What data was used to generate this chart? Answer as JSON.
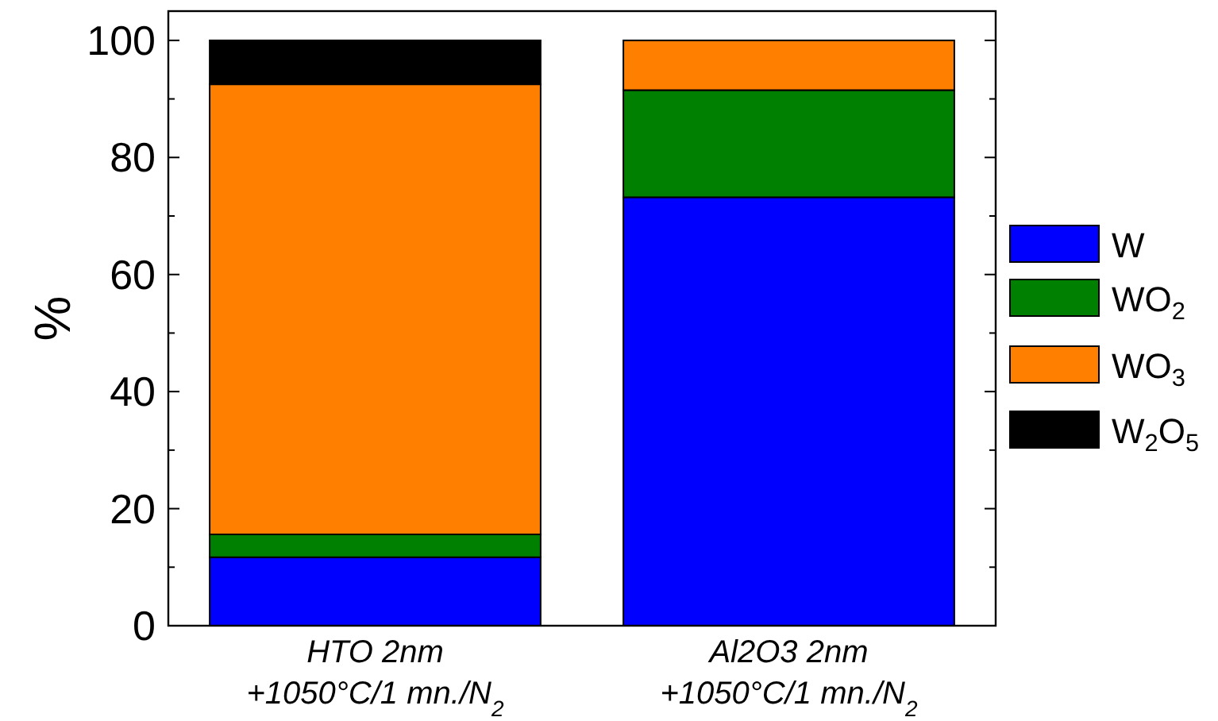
{
  "chart_data": {
    "type": "bar",
    "stacked": true,
    "ylabel": "%",
    "categories": [
      "HTO 2nm\n+1050°C/1 mn./N$_{2}$",
      "Al2O3 2nm\n+1050°C/1 mn./N$_{2}$"
    ],
    "series": [
      {
        "name": "W",
        "color": "#0000ff",
        "values": [
          11.7,
          73.2
        ]
      },
      {
        "name": "WO$_{2}$",
        "color": "#008000",
        "values": [
          3.9,
          18.3
        ]
      },
      {
        "name": "WO$_{3}$",
        "color": "#ff8000",
        "values": [
          76.9,
          8.5
        ]
      },
      {
        "name": "W$_{2}$O$_{5}$",
        "color": "#000000",
        "values": [
          7.5,
          0
        ]
      }
    ],
    "ylim": [
      0,
      105
    ],
    "yticks": [
      0,
      {
        "value": 10,
        "label": null
      },
      20,
      {
        "value": 30,
        "label": null
      },
      40,
      {
        "value": 50,
        "label": null
      },
      60,
      {
        "value": 70,
        "label": null
      },
      80,
      {
        "value": 90,
        "label": null
      },
      100
    ],
    "grid": false,
    "legend": "right"
  }
}
